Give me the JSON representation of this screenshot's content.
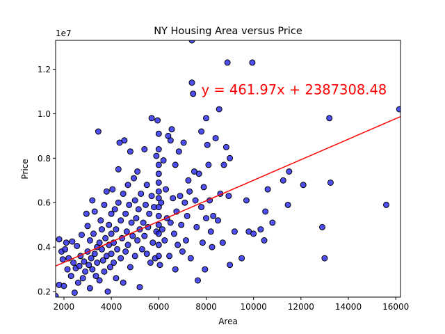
{
  "chart_data": {
    "type": "scatter",
    "title": "NY Housing Area versus Price",
    "xlabel": "Area",
    "ylabel": "Price",
    "y_offset_label": "1e7",
    "xlim": [
      1650,
      16200
    ],
    "ylim": [
      1750000,
      13300000
    ],
    "x_ticks": [
      2000,
      4000,
      6000,
      8000,
      10000,
      12000,
      14000,
      16000
    ],
    "x_tick_labels": [
      "2000",
      "4000",
      "6000",
      "8000",
      "10000",
      "12000",
      "14000",
      "16000"
    ],
    "y_ticks": [
      2000000,
      4000000,
      6000000,
      8000000,
      10000000,
      12000000
    ],
    "y_tick_labels": [
      "0.2",
      "0.4",
      "0.6",
      "0.8",
      "1.0",
      "1.2"
    ],
    "grid": false,
    "regression": {
      "slope": 461.97,
      "intercept": 2387308.48,
      "equation_label": "y = 461.97x + 2387308.48",
      "label_anchor": [
        7800,
        11100000
      ]
    },
    "colors": {
      "points_fill": "#2222ee",
      "points_edge": "#000000",
      "regression_line": "#ff0000",
      "equation_text": "#ff0000"
    },
    "points": [
      [
        1650,
        1800000
      ],
      [
        1800,
        2300000
      ],
      [
        1800,
        4350000
      ],
      [
        1900,
        3800000
      ],
      [
        1950,
        3450000
      ],
      [
        2000,
        2250000
      ],
      [
        2050,
        3900000
      ],
      [
        2100,
        4200000
      ],
      [
        2150,
        3000000
      ],
      [
        2200,
        3500000
      ],
      [
        2300,
        2700000
      ],
      [
        2350,
        4250000
      ],
      [
        2400,
        3300000
      ],
      [
        2450,
        1950000
      ],
      [
        2500,
        3050000
      ],
      [
        2550,
        4050000
      ],
      [
        2600,
        2400000
      ],
      [
        2650,
        3150000
      ],
      [
        2700,
        3600000
      ],
      [
        2750,
        4550000
      ],
      [
        2800,
        2600000
      ],
      [
        2850,
        3350000
      ],
      [
        2900,
        2900000
      ],
      [
        2950,
        5500000
      ],
      [
        3000,
        4950000
      ],
      [
        3000,
        3800000
      ],
      [
        3050,
        3200000
      ],
      [
        3100,
        2150000
      ],
      [
        3100,
        4300000
      ],
      [
        3150,
        3500000
      ],
      [
        3200,
        6100000
      ],
      [
        3200,
        3000000
      ],
      [
        3250,
        4600000
      ],
      [
        3300,
        5600000
      ],
      [
        3300,
        3700000
      ],
      [
        3350,
        2700000
      ],
      [
        3400,
        4000000
      ],
      [
        3400,
        3300000
      ],
      [
        3450,
        9200000
      ],
      [
        3500,
        4200000
      ],
      [
        3500,
        2500000
      ],
      [
        3550,
        5200000
      ],
      [
        3600,
        3900000
      ],
      [
        3600,
        4800000
      ],
      [
        3650,
        3400000
      ],
      [
        3700,
        5900000
      ],
      [
        3700,
        2900000
      ],
      [
        3750,
        4400000
      ],
      [
        3800,
        6500000
      ],
      [
        3800,
        3600000
      ],
      [
        3850,
        2000000
      ],
      [
        3900,
        5000000
      ],
      [
        3900,
        4100000
      ],
      [
        3950,
        3100000
      ],
      [
        4000,
        5500000
      ],
      [
        4000,
        4600000
      ],
      [
        4000,
        3700000
      ],
      [
        4050,
        6600000
      ],
      [
        4100,
        4200000
      ],
      [
        4100,
        3300000
      ],
      [
        4150,
        5700000
      ],
      [
        4200,
        2600000
      ],
      [
        4200,
        4800000
      ],
      [
        4250,
        3900000
      ],
      [
        4300,
        7500000
      ],
      [
        4300,
        6000000
      ],
      [
        4350,
        8700000
      ],
      [
        4400,
        5200000
      ],
      [
        4400,
        3500000
      ],
      [
        4450,
        4400000
      ],
      [
        4500,
        6400000
      ],
      [
        4500,
        2400000
      ],
      [
        4550,
        8800000
      ],
      [
        4600,
        5500000
      ],
      [
        4600,
        3800000
      ],
      [
        4650,
        4700000
      ],
      [
        4700,
        6800000
      ],
      [
        4700,
        4100000
      ],
      [
        4750,
        5900000
      ],
      [
        4800,
        8300000
      ],
      [
        4800,
        3100000
      ],
      [
        4850,
        5100000
      ],
      [
        4900,
        4500000
      ],
      [
        4950,
        7100000
      ],
      [
        5000,
        6100000
      ],
      [
        5000,
        3600000
      ],
      [
        5050,
        5300000
      ],
      [
        5100,
        7400000
      ],
      [
        5100,
        4300000
      ],
      [
        5150,
        5700000
      ],
      [
        5200,
        2200000
      ],
      [
        5200,
        4800000
      ],
      [
        5250,
        6400000
      ],
      [
        5300,
        3900000
      ],
      [
        5350,
        5100000
      ],
      [
        5400,
        8400000
      ],
      [
        5400,
        4500000
      ],
      [
        5450,
        5900000
      ],
      [
        5500,
        3700000
      ],
      [
        5500,
        6800000
      ],
      [
        5550,
        4900000
      ],
      [
        5600,
        5500000
      ],
      [
        5650,
        3300000
      ],
      [
        5700,
        6300000
      ],
      [
        5700,
        9800000
      ],
      [
        5750,
        4200000
      ],
      [
        5800,
        5800000
      ],
      [
        5850,
        3500000
      ],
      [
        5900,
        8100000
      ],
      [
        5900,
        4700000
      ],
      [
        5950,
        9700000
      ],
      [
        6000,
        7700000
      ],
      [
        6000,
        7300000
      ],
      [
        6000,
        6900000
      ],
      [
        6000,
        6500000
      ],
      [
        6000,
        6200000
      ],
      [
        6000,
        5800000
      ],
      [
        6000,
        5400000
      ],
      [
        6000,
        5000000
      ],
      [
        6000,
        4600000
      ],
      [
        6000,
        4100000
      ],
      [
        6000,
        3600000
      ],
      [
        6000,
        9100000
      ],
      [
        6000,
        8400000
      ],
      [
        6050,
        3200000
      ],
      [
        6100,
        6000000
      ],
      [
        6150,
        4800000
      ],
      [
        6200,
        7900000
      ],
      [
        6250,
        4300000
      ],
      [
        6300,
        6600000
      ],
      [
        6350,
        5300000
      ],
      [
        6400,
        9000000
      ],
      [
        6450,
        3600000
      ],
      [
        6500,
        8800000
      ],
      [
        6500,
        5100000
      ],
      [
        6550,
        9300000
      ],
      [
        6600,
        6200000
      ],
      [
        6650,
        4600000
      ],
      [
        6700,
        7700000
      ],
      [
        6700,
        3000000
      ],
      [
        6750,
        5600000
      ],
      [
        6800,
        4100000
      ],
      [
        6850,
        8300000
      ],
      [
        6900,
        6300000
      ],
      [
        6950,
        5000000
      ],
      [
        7000,
        3800000
      ],
      [
        7050,
        8700000
      ],
      [
        7100,
        6000000
      ],
      [
        7150,
        4300000
      ],
      [
        7200,
        5400000
      ],
      [
        7250,
        7000000
      ],
      [
        7300,
        6500000
      ],
      [
        7350,
        3500000
      ],
      [
        7400,
        13300000
      ],
      [
        7400,
        11400000
      ],
      [
        7450,
        10900000
      ],
      [
        7500,
        7400000
      ],
      [
        7550,
        6100000
      ],
      [
        7600,
        4900000
      ],
      [
        7650,
        2500000
      ],
      [
        7700,
        7300000
      ],
      [
        7800,
        5800000
      ],
      [
        7800,
        9200000
      ],
      [
        7850,
        4200000
      ],
      [
        7900,
        6700000
      ],
      [
        7950,
        3000000
      ],
      [
        8000,
        5300000
      ],
      [
        8000,
        9800000
      ],
      [
        8050,
        8600000
      ],
      [
        8100,
        7700000
      ],
      [
        8150,
        6100000
      ],
      [
        8200,
        4700000
      ],
      [
        8250,
        4000000
      ],
      [
        8300,
        5400000
      ],
      [
        8400,
        8900000
      ],
      [
        8500,
        5200000
      ],
      [
        8550,
        10200000
      ],
      [
        8600,
        6400000
      ],
      [
        8700,
        4200000
      ],
      [
        8750,
        7700000
      ],
      [
        8850,
        8500000
      ],
      [
        8900,
        12300000
      ],
      [
        8950,
        6300000
      ],
      [
        9000,
        8000000
      ],
      [
        9000,
        3200000
      ],
      [
        9200,
        4700000
      ],
      [
        9500,
        3500000
      ],
      [
        9700,
        6100000
      ],
      [
        9800,
        4700000
      ],
      [
        9950,
        12300000
      ],
      [
        10000,
        4600000
      ],
      [
        10300,
        4800000
      ],
      [
        10450,
        4300000
      ],
      [
        10500,
        5600000
      ],
      [
        10600,
        6600000
      ],
      [
        10800,
        5100000
      ],
      [
        11250,
        7000000
      ],
      [
        11450,
        5900000
      ],
      [
        11500,
        7400000
      ],
      [
        12100,
        6800000
      ],
      [
        12900,
        4900000
      ],
      [
        13000,
        3500000
      ],
      [
        13200,
        9800000
      ],
      [
        13250,
        6900000
      ],
      [
        15600,
        5900000
      ],
      [
        16150,
        10200000
      ]
    ]
  }
}
